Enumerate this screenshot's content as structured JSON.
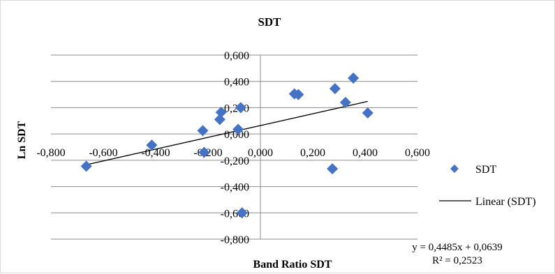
{
  "chart_data": {
    "type": "scatter",
    "title": "SDT",
    "xlabel": "Band Ratio SDT",
    "ylabel": "Ln SDT",
    "xlim": [
      -0.8,
      0.6
    ],
    "ylim": [
      -0.8,
      0.6
    ],
    "x_ticks": [
      "-0,800",
      "-0,600",
      "-0,400",
      "-0,200",
      "0,000",
      "0,200",
      "0,400",
      "0,600"
    ],
    "y_ticks": [
      "0,600",
      "0,400",
      "0,200",
      "0,000",
      "-0,200",
      "-0,400",
      "-0,600",
      "-0,800"
    ],
    "x_tick_values": [
      -0.8,
      -0.6,
      -0.4,
      -0.2,
      0.0,
      0.2,
      0.4,
      0.6
    ],
    "y_tick_values": [
      0.6,
      0.4,
      0.2,
      0.0,
      -0.2,
      -0.4,
      -0.6,
      -0.8
    ],
    "grid": "horizontal",
    "series": [
      {
        "name": "SDT",
        "color": "#4472C4",
        "marker": "diamond",
        "points": [
          {
            "x": -0.665,
            "y": -0.245
          },
          {
            "x": -0.415,
            "y": -0.085
          },
          {
            "x": -0.22,
            "y": 0.025
          },
          {
            "x": -0.215,
            "y": -0.14
          },
          {
            "x": -0.155,
            "y": 0.11
          },
          {
            "x": -0.15,
            "y": 0.165
          },
          {
            "x": -0.085,
            "y": 0.035
          },
          {
            "x": -0.075,
            "y": 0.2
          },
          {
            "x": -0.07,
            "y": -0.6
          },
          {
            "x": 0.13,
            "y": 0.305
          },
          {
            "x": 0.145,
            "y": 0.3
          },
          {
            "x": 0.275,
            "y": -0.265
          },
          {
            "x": 0.285,
            "y": 0.345
          },
          {
            "x": 0.325,
            "y": 0.24
          },
          {
            "x": 0.355,
            "y": 0.425
          },
          {
            "x": 0.41,
            "y": 0.16
          }
        ]
      }
    ],
    "trendline": {
      "name": "Linear (SDT)",
      "slope": 0.4485,
      "intercept": 0.0639,
      "x_range": [
        -0.665,
        0.41
      ],
      "color": "#000000",
      "equation_label": "y = 0,4485x + 0,0639",
      "r2_label": "R² = 0,2523"
    },
    "legend": {
      "position": "right",
      "entries": [
        "SDT",
        "Linear (SDT)"
      ]
    }
  }
}
